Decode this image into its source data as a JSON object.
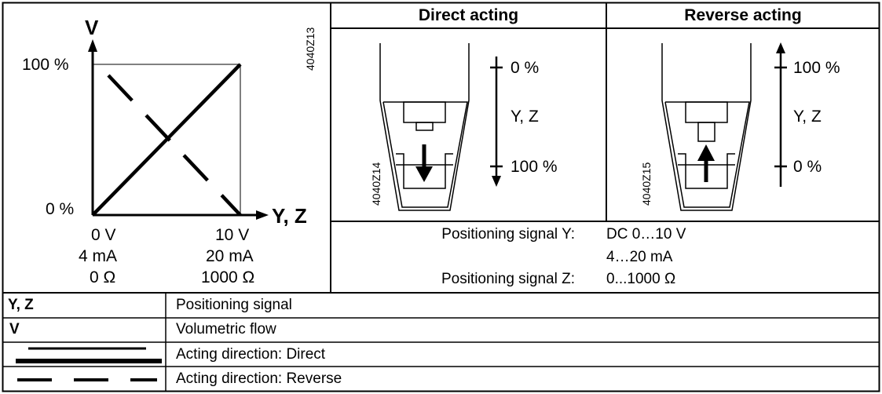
{
  "chart": {
    "y_axis_label": "V",
    "x_axis_label": "Y, Z",
    "y_top": "100 %",
    "y_bottom": "0 %",
    "drawing_code": "4040Z13",
    "x_left": [
      "0 V",
      "4 mA",
      "0 Ω"
    ],
    "x_right": [
      "10 V",
      "20 mA",
      "1000 Ω"
    ]
  },
  "direct": {
    "header": "Direct acting",
    "top": "0 %",
    "mid": "Y, Z",
    "bottom": "100 %",
    "code": "4040Z14"
  },
  "reverse": {
    "header": "Reverse acting",
    "top": "100 %",
    "mid": "Y, Z",
    "bottom": "0 %",
    "code": "4040Z15"
  },
  "signals": {
    "y_label": "Positioning signal Y:",
    "y_value1": "DC 0…10 V",
    "y_value2": "4…20 mA",
    "z_label": "Positioning signal Z:",
    "z_value": "0...1000 Ω"
  },
  "legend": [
    {
      "key": "Y, Z",
      "desc": "Positioning signal"
    },
    {
      "key": "V",
      "desc": "Volumetric flow"
    },
    {
      "key": "",
      "desc": "Acting direction: Direct"
    },
    {
      "key": "",
      "desc": "Acting direction: Reverse"
    }
  ]
}
